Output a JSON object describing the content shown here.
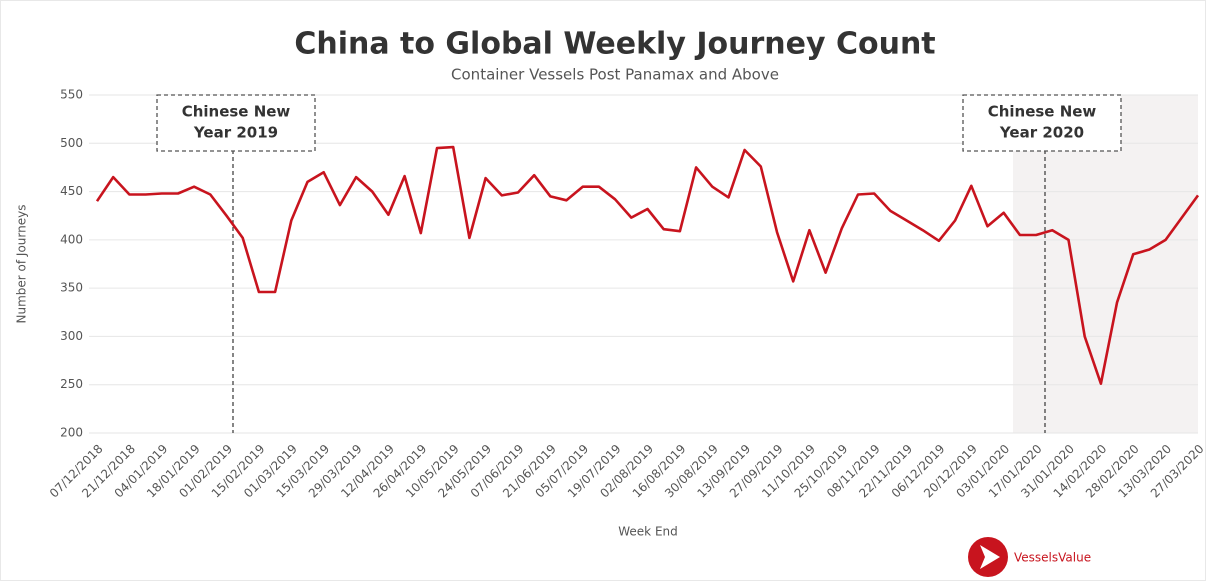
{
  "chart_data": {
    "type": "line",
    "title": "China to Global Weekly Journey Count",
    "subtitle": "Container Vessels Post Panamax and Above",
    "x_label": "Week End",
    "y_label": "Number  of Journeys",
    "categories": [
      "07/12/2018",
      null,
      "21/12/2018",
      null,
      "04/01/2019",
      null,
      "18/01/2019",
      null,
      "01/02/2019",
      null,
      "15/02/2019",
      null,
      "01/03/2019",
      null,
      "15/03/2019",
      null,
      "29/03/2019",
      null,
      "12/04/2019",
      null,
      "26/04/2019",
      null,
      "10/05/2019",
      null,
      "24/05/2019",
      null,
      "07/06/2019",
      null,
      "21/06/2019",
      null,
      "05/07/2019",
      null,
      "19/07/2019",
      null,
      "02/08/2019",
      null,
      "16/08/2019",
      null,
      "30/08/2019",
      null,
      "13/09/2019",
      null,
      "27/09/2019",
      null,
      "11/10/2019",
      null,
      "25/10/2019",
      null,
      "08/11/2019",
      null,
      "22/11/2019",
      null,
      "06/12/2019",
      null,
      "20/12/2019",
      null,
      "03/01/2020",
      null,
      "17/01/2020",
      null,
      "31/01/2020",
      null,
      "14/02/2020",
      null,
      "28/02/2020",
      null,
      "13/03/2020",
      null,
      "27/03/2020"
    ],
    "values": [
      440,
      465,
      447,
      447,
      448,
      448,
      455,
      447,
      425,
      402,
      346,
      346,
      420,
      460,
      470,
      436,
      465,
      450,
      426,
      466,
      407,
      495,
      496,
      402,
      464,
      446,
      449,
      467,
      445,
      441,
      455,
      455,
      442,
      423,
      432,
      411,
      409,
      475,
      455,
      444,
      493,
      476,
      408,
      357,
      410,
      366,
      412,
      447,
      448,
      430,
      420,
      410,
      399,
      420,
      456,
      414,
      428,
      405,
      405,
      410,
      400,
      300,
      251,
      335,
      385,
      390,
      400,
      423,
      446
    ],
    "color": "#c8141e",
    "ylim": [
      200,
      550
    ],
    "yticks": [
      200,
      250,
      300,
      350,
      400,
      450,
      500,
      550
    ],
    "grid": true,
    "annotations": [
      {
        "lines": [
          "Chinese New",
          "Year 2019"
        ]
      },
      {
        "lines": [
          "Chinese New",
          "Year 2020"
        ]
      }
    ]
  },
  "brand": "VesselsValue"
}
